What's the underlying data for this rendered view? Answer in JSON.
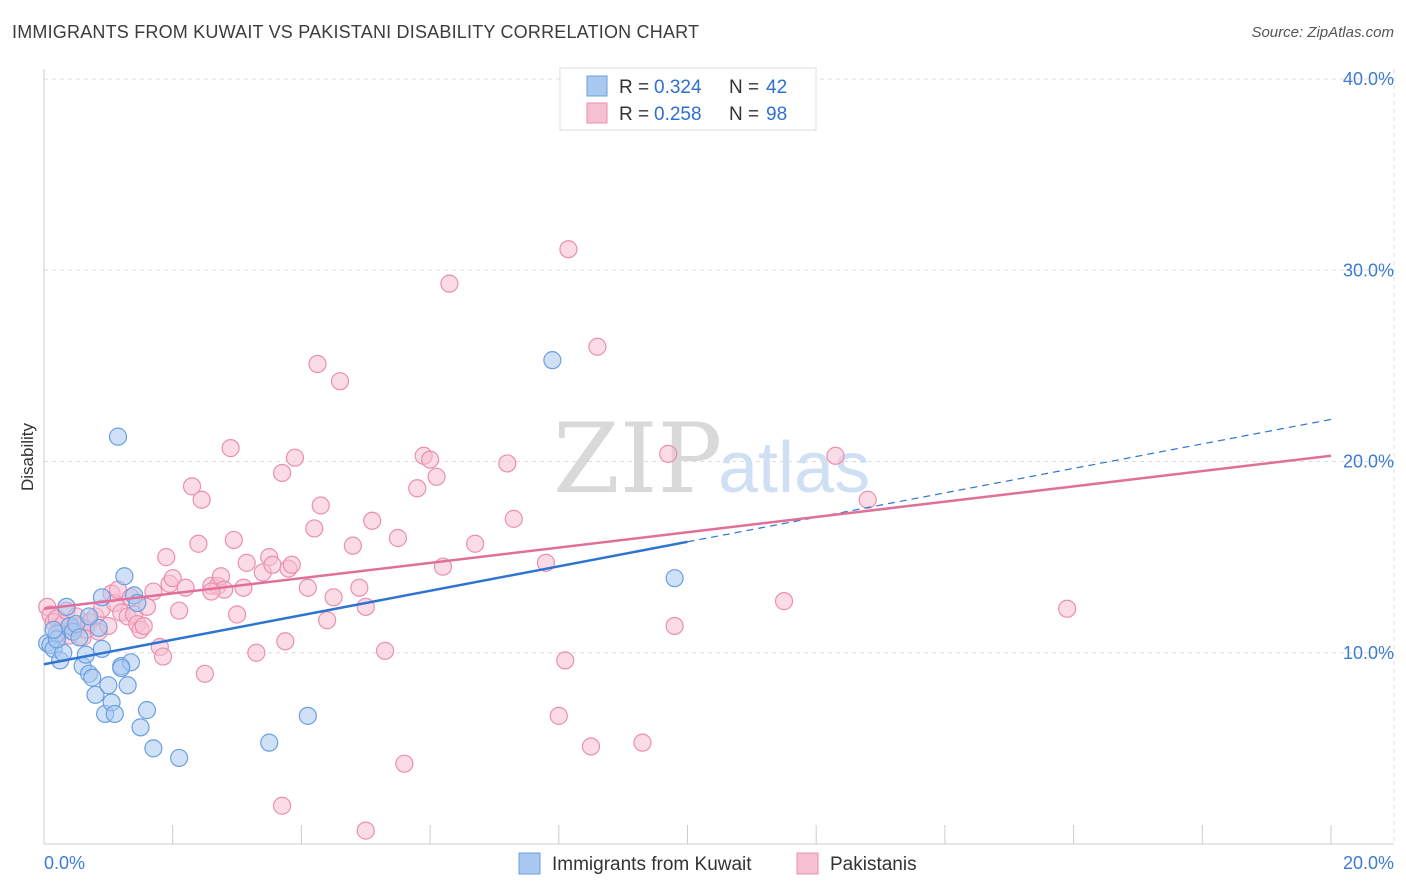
{
  "title": "IMMIGRANTS FROM KUWAIT VS PAKISTANI DISABILITY CORRELATION CHART",
  "source": "Source: ZipAtlas.com",
  "watermark": {
    "zip": "ZIP",
    "atlas": "atlas"
  },
  "colors": {
    "blue_fill": "#a9c9f0",
    "blue_stroke": "#6a9fe0",
    "blue_line": "#2f74d0",
    "pink_fill": "#f7c0d2",
    "pink_stroke": "#ea8fb0",
    "pink_line": "#e0709a",
    "grid": "#dddddd",
    "axis": "#cccccc"
  },
  "legend": {
    "rows": [
      {
        "r_label": "R = ",
        "r_value": "0.324",
        "n_label": "N = ",
        "n_value": "42"
      },
      {
        "r_label": "R = ",
        "r_value": "0.258",
        "n_label": "N = ",
        "n_value": "98"
      }
    ]
  },
  "chart_data": {
    "type": "scatter",
    "xlabel": "",
    "ylabel": "Disability",
    "xlim": [
      0,
      20
    ],
    "ylim": [
      0,
      40
    ],
    "x_tick_labels": {
      "min": "0.0%",
      "max": "20.0%"
    },
    "y_ticks": [
      10,
      20,
      30,
      40
    ],
    "y_tick_labels": [
      "10.0%",
      "20.0%",
      "30.0%",
      "40.0%"
    ],
    "grid": true,
    "series": [
      {
        "name": "Immigrants from Kuwait",
        "color": "blue",
        "R": 0.324,
        "N": 42,
        "trend": {
          "x0": 0,
          "y0": 9.4,
          "x1": 10,
          "y1": 15.8,
          "dash_to_x": 20,
          "dash_to_y": 22.2
        },
        "points": [
          [
            0.05,
            10.5
          ],
          [
            0.1,
            10.4
          ],
          [
            0.15,
            10.2
          ],
          [
            0.2,
            11.0
          ],
          [
            0.25,
            9.6
          ],
          [
            0.3,
            10.0
          ],
          [
            0.35,
            12.4
          ],
          [
            0.4,
            11.4
          ],
          [
            0.45,
            11.1
          ],
          [
            0.5,
            11.5
          ],
          [
            0.55,
            10.8
          ],
          [
            0.6,
            9.3
          ],
          [
            0.65,
            9.9
          ],
          [
            0.7,
            8.9
          ],
          [
            0.75,
            8.7
          ],
          [
            0.8,
            7.8
          ],
          [
            0.85,
            11.3
          ],
          [
            0.9,
            10.2
          ],
          [
            0.95,
            6.8
          ],
          [
            1.0,
            8.3
          ],
          [
            1.05,
            7.4
          ],
          [
            1.1,
            6.8
          ],
          [
            1.15,
            21.3
          ],
          [
            1.2,
            9.3
          ],
          [
            1.25,
            14.0
          ],
          [
            1.3,
            8.3
          ],
          [
            1.35,
            9.5
          ],
          [
            1.4,
            13.0
          ],
          [
            1.45,
            12.6
          ],
          [
            1.5,
            6.1
          ],
          [
            1.6,
            7.0
          ],
          [
            1.7,
            5.0
          ],
          [
            2.1,
            4.5
          ],
          [
            3.5,
            5.3
          ],
          [
            4.1,
            6.7
          ],
          [
            7.9,
            25.3
          ],
          [
            9.8,
            13.9
          ],
          [
            0.2,
            10.7
          ],
          [
            0.9,
            12.9
          ],
          [
            1.2,
            9.2
          ],
          [
            0.15,
            11.2
          ],
          [
            0.7,
            11.9
          ]
        ]
      },
      {
        "name": "Pakistanis",
        "color": "pink",
        "R": 0.258,
        "N": 98,
        "trend": {
          "x0": 0,
          "y0": 12.3,
          "x1": 20,
          "y1": 20.3
        },
        "points": [
          [
            0.05,
            12.4
          ],
          [
            0.1,
            12.0
          ],
          [
            0.15,
            11.6
          ],
          [
            0.2,
            11.8
          ],
          [
            0.25,
            11.0
          ],
          [
            0.3,
            11.5
          ],
          [
            0.35,
            12.2
          ],
          [
            0.4,
            10.9
          ],
          [
            0.45,
            11.3
          ],
          [
            0.5,
            11.9
          ],
          [
            0.55,
            11.4
          ],
          [
            0.6,
            10.8
          ],
          [
            0.65,
            11.2
          ],
          [
            0.7,
            11.6
          ],
          [
            0.8,
            11.9
          ],
          [
            0.85,
            11.1
          ],
          [
            0.9,
            12.3
          ],
          [
            1.0,
            11.4
          ],
          [
            1.05,
            13.1
          ],
          [
            1.1,
            12.6
          ],
          [
            1.15,
            13.3
          ],
          [
            1.2,
            12.1
          ],
          [
            1.3,
            11.9
          ],
          [
            1.35,
            12.9
          ],
          [
            1.4,
            12.0
          ],
          [
            1.45,
            11.5
          ],
          [
            1.5,
            11.2
          ],
          [
            1.55,
            11.4
          ],
          [
            1.6,
            12.4
          ],
          [
            1.7,
            13.2
          ],
          [
            1.8,
            10.3
          ],
          [
            1.85,
            9.8
          ],
          [
            1.9,
            15.0
          ],
          [
            1.95,
            13.6
          ],
          [
            2.0,
            13.9
          ],
          [
            2.1,
            12.2
          ],
          [
            2.2,
            13.4
          ],
          [
            2.3,
            18.7
          ],
          [
            2.4,
            15.7
          ],
          [
            2.45,
            18.0
          ],
          [
            2.5,
            8.9
          ],
          [
            2.6,
            13.5
          ],
          [
            2.7,
            13.5
          ],
          [
            2.75,
            14.0
          ],
          [
            2.8,
            13.3
          ],
          [
            2.9,
            20.7
          ],
          [
            2.95,
            15.9
          ],
          [
            3.0,
            12.0
          ],
          [
            3.1,
            13.4
          ],
          [
            3.15,
            14.7
          ],
          [
            3.3,
            10.0
          ],
          [
            3.4,
            14.2
          ],
          [
            3.5,
            15.0
          ],
          [
            3.55,
            14.6
          ],
          [
            3.7,
            19.4
          ],
          [
            3.75,
            10.6
          ],
          [
            3.8,
            14.4
          ],
          [
            3.85,
            14.6
          ],
          [
            3.9,
            20.2
          ],
          [
            4.1,
            13.4
          ],
          [
            4.2,
            16.5
          ],
          [
            4.25,
            25.1
          ],
          [
            4.3,
            17.7
          ],
          [
            4.4,
            11.7
          ],
          [
            4.5,
            12.9
          ],
          [
            4.6,
            24.2
          ],
          [
            4.8,
            15.6
          ],
          [
            4.9,
            13.4
          ],
          [
            5.0,
            12.4
          ],
          [
            5.1,
            16.9
          ],
          [
            5.3,
            10.1
          ],
          [
            5.5,
            16.0
          ],
          [
            5.6,
            4.2
          ],
          [
            5.8,
            18.6
          ],
          [
            5.9,
            20.3
          ],
          [
            6.0,
            20.1
          ],
          [
            6.1,
            19.2
          ],
          [
            6.2,
            14.5
          ],
          [
            6.3,
            29.3
          ],
          [
            6.7,
            15.7
          ],
          [
            7.2,
            19.9
          ],
          [
            7.3,
            17.0
          ],
          [
            7.8,
            14.7
          ],
          [
            8.0,
            6.7
          ],
          [
            8.1,
            9.6
          ],
          [
            8.15,
            31.1
          ],
          [
            8.5,
            5.1
          ],
          [
            8.6,
            26.0
          ],
          [
            9.3,
            5.3
          ],
          [
            9.7,
            20.4
          ],
          [
            9.8,
            11.4
          ],
          [
            11.5,
            12.7
          ],
          [
            12.3,
            20.3
          ],
          [
            12.8,
            18.0
          ],
          [
            15.9,
            12.3
          ],
          [
            3.7,
            2.0
          ],
          [
            5.0,
            0.7
          ],
          [
            2.6,
            13.2
          ]
        ]
      }
    ]
  },
  "bottom_legend": [
    "Immigrants from Kuwait",
    "Pakistanis"
  ]
}
